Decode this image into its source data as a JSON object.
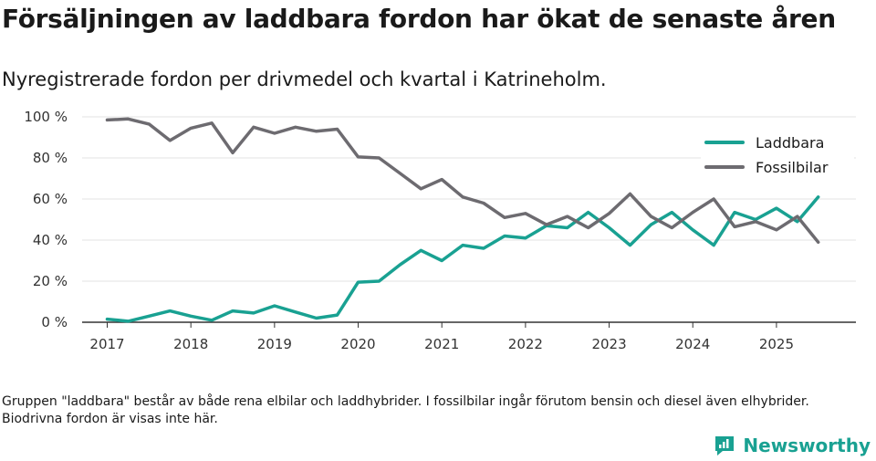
{
  "header": {
    "title": "Försäljningen av laddbara fordon har ökat de senaste åren",
    "subtitle": "Nyregistrerade fordon per drivmedel och kvartal i Katrineholm."
  },
  "footnote": "Gruppen \"laddbara\" består av både rena elbilar och laddhybrider. I fossilbilar ingår förutom bensin och diesel även elhybrider. Biodrivna fordon är visas inte här.",
  "brand": {
    "name": "Newsworthy",
    "icon": "newsworthy-logo-icon"
  },
  "colors": {
    "laddbara": "#19a192",
    "fossil": "#6d6b70",
    "grid": "#e3e3e3",
    "axis": "#333333"
  },
  "chart_data": {
    "type": "line",
    "title": "Försäljningen av laddbara fordon har ökat de senaste åren",
    "subtitle": "Nyregistrerade fordon per drivmedel och kvartal i Katrineholm.",
    "xlabel": "",
    "ylabel": "",
    "x_unit": "quarter",
    "x": [
      2017.0,
      2017.25,
      2017.5,
      2017.75,
      2018.0,
      2018.25,
      2018.5,
      2018.75,
      2019.0,
      2019.25,
      2019.5,
      2019.75,
      2020.0,
      2020.25,
      2020.5,
      2020.75,
      2021.0,
      2021.25,
      2021.5,
      2021.75,
      2022.0,
      2022.25,
      2022.5,
      2022.75,
      2023.0,
      2023.25,
      2023.5,
      2023.75,
      2024.0,
      2024.25,
      2024.5,
      2024.75,
      2025.0,
      2025.25,
      2025.5
    ],
    "xlim": [
      2016.7,
      2025.95
    ],
    "xticks": [
      2017,
      2018,
      2019,
      2020,
      2021,
      2022,
      2023,
      2024,
      2025
    ],
    "xtick_labels": [
      "2017",
      "2018",
      "2019",
      "2020",
      "2021",
      "2022",
      "2023",
      "2024",
      "2025"
    ],
    "ylim": [
      0,
      100
    ],
    "yticks": [
      0,
      20,
      40,
      60,
      80,
      100
    ],
    "ytick_labels": [
      "0 %",
      "20 %",
      "40 %",
      "60 %",
      "80 %",
      "100 %"
    ],
    "grid": true,
    "legend_position": "top-right",
    "series": [
      {
        "name": "Laddbara",
        "color": "#19a192",
        "values": [
          1.5,
          0.5,
          3,
          5.5,
          3,
          1,
          5.5,
          4.5,
          8,
          5,
          2,
          3.5,
          19.5,
          20,
          28,
          35,
          30,
          37.5,
          36,
          42,
          41,
          47,
          46,
          53.5,
          46,
          37.5,
          47.5,
          53.5,
          45,
          37.5,
          53.5,
          50,
          55.5,
          49,
          61
        ]
      },
      {
        "name": "Fossilbilar",
        "color": "#6d6b70",
        "values": [
          98.5,
          99,
          96.5,
          88.5,
          94.5,
          97,
          82.5,
          95,
          92,
          95,
          93,
          94,
          80.5,
          80,
          72.5,
          65,
          69.5,
          61,
          58,
          51,
          53,
          47.5,
          51.5,
          46,
          53,
          62.5,
          51.5,
          46,
          53.5,
          60,
          46.5,
          49,
          45,
          51.5,
          39
        ]
      }
    ]
  }
}
